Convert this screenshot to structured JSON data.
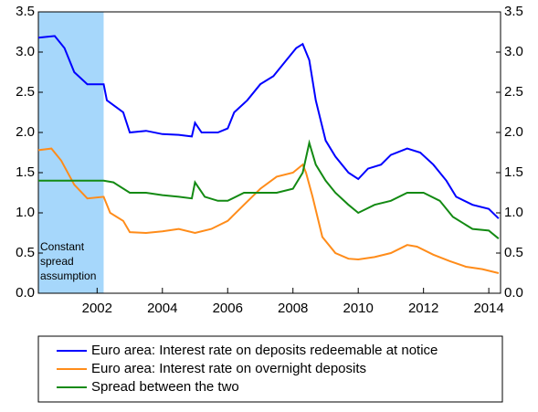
{
  "chart_data": {
    "type": "line",
    "xlim": [
      2000.2,
      2014.36
    ],
    "xticks": [
      2002,
      2004,
      2006,
      2008,
      2010,
      2012,
      2014
    ],
    "ylim": [
      0,
      3.5
    ],
    "yticks": [
      {
        "value": 0,
        "label": "0.0"
      },
      {
        "value": 0.5,
        "label": "0.5"
      },
      {
        "value": 1,
        "label": "1.0"
      },
      {
        "value": 1.5,
        "label": "1.5"
      },
      {
        "value": 2,
        "label": "2.0"
      },
      {
        "value": 2.5,
        "label": "2.5"
      },
      {
        "value": 3,
        "label": "3.0"
      },
      {
        "value": 3.5,
        "label": "3.5"
      }
    ],
    "y2lim": [
      0,
      3.5
    ],
    "y2ticks": [
      {
        "value": 0,
        "label": "0.0"
      },
      {
        "value": 0.5,
        "label": "0.5"
      },
      {
        "value": 1,
        "label": "1.0"
      },
      {
        "value": 1.5,
        "label": "1.5"
      },
      {
        "value": 2,
        "label": "2.0"
      },
      {
        "value": 2.5,
        "label": "2.5"
      },
      {
        "value": 3,
        "label": "3.0"
      },
      {
        "value": 3.5,
        "label": "3.5"
      }
    ],
    "shade": {
      "x": [
        2000.2,
        2002.2
      ],
      "color": "#a6d7fb",
      "label_lines": [
        "Constant",
        "spread",
        "assumption"
      ]
    },
    "series": [
      {
        "name": "Euro area: Interest rate on deposits redeemable at notice",
        "color": "#0000ff",
        "x": [
          2000.2,
          2000.7,
          2001.0,
          2001.3,
          2001.7,
          2002.2,
          2002.3,
          2002.8,
          2003.0,
          2003.5,
          2004.0,
          2004.5,
          2004.9,
          2005.0,
          2005.2,
          2005.7,
          2006.0,
          2006.2,
          2006.6,
          2007.0,
          2007.4,
          2007.8,
          2008.1,
          2008.3,
          2008.5,
          2008.7,
          2009.0,
          2009.3,
          2009.7,
          2010.0,
          2010.3,
          2010.7,
          2011.0,
          2011.5,
          2011.9,
          2012.3,
          2012.7,
          2013.0,
          2013.5,
          2014.0,
          2014.3
        ],
        "values": [
          3.18,
          3.2,
          3.05,
          2.75,
          2.6,
          2.6,
          2.4,
          2.25,
          2.0,
          2.02,
          1.98,
          1.97,
          1.95,
          2.12,
          2.0,
          2.0,
          2.05,
          2.25,
          2.4,
          2.6,
          2.7,
          2.9,
          3.05,
          3.1,
          2.9,
          2.4,
          1.9,
          1.7,
          1.5,
          1.42,
          1.55,
          1.6,
          1.72,
          1.8,
          1.75,
          1.6,
          1.4,
          1.2,
          1.1,
          1.05,
          0.93
        ]
      },
      {
        "name": "Euro area: Interest rate on overnight deposits",
        "color": "#ff8c1a",
        "x": [
          2000.2,
          2000.6,
          2000.9,
          2001.3,
          2001.7,
          2002.2,
          2002.4,
          2002.8,
          2003.0,
          2003.5,
          2004.0,
          2004.5,
          2005.0,
          2005.5,
          2006.0,
          2006.5,
          2007.0,
          2007.5,
          2008.0,
          2008.3,
          2008.4,
          2008.6,
          2008.9,
          2009.3,
          2009.7,
          2010.0,
          2010.5,
          2011.0,
          2011.5,
          2011.8,
          2012.3,
          2012.8,
          2013.3,
          2013.8,
          2014.3
        ],
        "values": [
          1.78,
          1.8,
          1.65,
          1.35,
          1.18,
          1.2,
          1.0,
          0.9,
          0.76,
          0.75,
          0.77,
          0.8,
          0.75,
          0.8,
          0.9,
          1.1,
          1.3,
          1.45,
          1.5,
          1.6,
          1.5,
          1.2,
          0.7,
          0.5,
          0.43,
          0.42,
          0.45,
          0.5,
          0.6,
          0.58,
          0.48,
          0.4,
          0.33,
          0.3,
          0.25
        ]
      },
      {
        "name": "Spread between the two",
        "color": "#138a13",
        "x": [
          2000.2,
          2002.2,
          2002.5,
          2003.0,
          2003.5,
          2004.0,
          2004.5,
          2004.9,
          2005.0,
          2005.3,
          2005.7,
          2006.0,
          2006.5,
          2007.0,
          2007.5,
          2008.0,
          2008.3,
          2008.5,
          2008.7,
          2009.0,
          2009.3,
          2009.7,
          2010.0,
          2010.5,
          2011.0,
          2011.5,
          2012.0,
          2012.5,
          2012.9,
          2013.5,
          2014.0,
          2014.3
        ],
        "values": [
          1.4,
          1.4,
          1.38,
          1.25,
          1.25,
          1.22,
          1.2,
          1.18,
          1.38,
          1.2,
          1.15,
          1.15,
          1.25,
          1.25,
          1.25,
          1.3,
          1.5,
          1.87,
          1.6,
          1.4,
          1.25,
          1.1,
          1.0,
          1.1,
          1.15,
          1.25,
          1.25,
          1.15,
          0.95,
          0.8,
          0.78,
          0.68
        ]
      }
    ]
  }
}
